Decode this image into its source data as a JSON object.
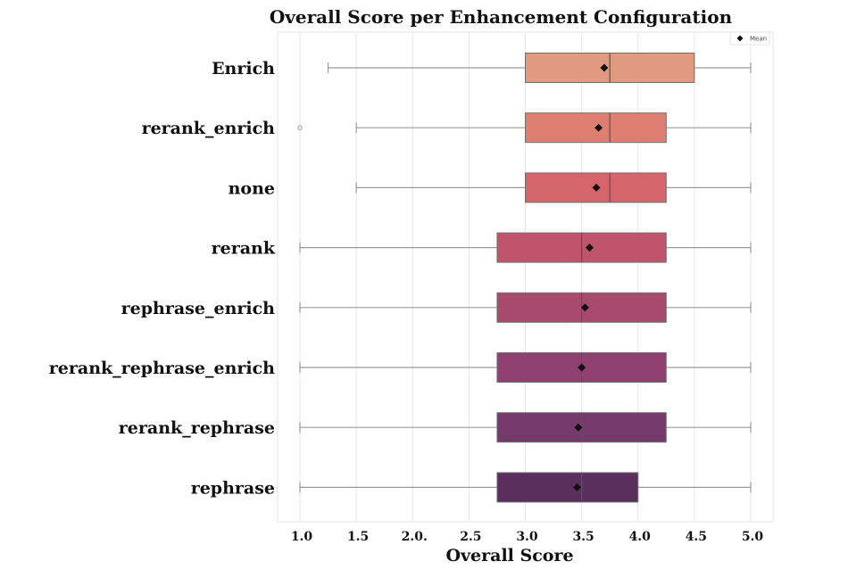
{
  "chart_data": {
    "type": "boxplot",
    "orientation": "horizontal",
    "title": "Overall Score per Enhancement Configuration",
    "xlabel": "Overall Score",
    "ylabel": "",
    "xlim": [
      0.9,
      5.1
    ],
    "xticks": [
      1.0,
      1.5,
      2.0,
      2.5,
      3.0,
      3.5,
      4.0,
      4.5,
      5.0
    ],
    "xtick_labels": [
      "1.0",
      "1.5",
      "2.0.",
      "2.5",
      "3.0",
      "3.5",
      "4.0",
      "4.5",
      "5.0"
    ],
    "grid": "vertical",
    "legend": {
      "placement": "top-right",
      "entries": [
        {
          "label": "Mean",
          "marker": "diamond"
        }
      ]
    },
    "categories": [
      "Enrich",
      "rerank_enrich",
      "none",
      "rerank",
      "rephrase_enrich",
      "rerank_rephrase_enrich",
      "rerank_rephrase",
      "rephrase"
    ],
    "colors": [
      "#e09a80",
      "#de7f72",
      "#d5646b",
      "#c1546d",
      "#a84a6d",
      "#8f4070",
      "#763a6a",
      "#5a2f5e"
    ],
    "boxes": [
      {
        "name": "Enrich",
        "whisker_low": 1.25,
        "q1": 3.0,
        "median": 3.75,
        "q3": 4.5,
        "whisker_high": 5.0,
        "mean": 3.7,
        "outliers": []
      },
      {
        "name": "rerank_enrich",
        "whisker_low": 1.5,
        "q1": 3.0,
        "median": 3.75,
        "q3": 4.25,
        "whisker_high": 5.0,
        "mean": 3.65,
        "outliers": [
          1.0
        ]
      },
      {
        "name": "none",
        "whisker_low": 1.5,
        "q1": 3.0,
        "median": 3.75,
        "q3": 4.25,
        "whisker_high": 5.0,
        "mean": 3.63,
        "outliers": []
      },
      {
        "name": "rerank",
        "whisker_low": 1.0,
        "q1": 2.75,
        "median": 3.5,
        "q3": 4.25,
        "whisker_high": 5.0,
        "mean": 3.57,
        "outliers": []
      },
      {
        "name": "rephrase_enrich",
        "whisker_low": 1.0,
        "q1": 2.75,
        "median": 3.5,
        "q3": 4.25,
        "whisker_high": 5.0,
        "mean": 3.53,
        "outliers": []
      },
      {
        "name": "rerank_rephrase_enrich",
        "whisker_low": 1.0,
        "q1": 2.75,
        "median": 3.5,
        "q3": 4.25,
        "whisker_high": 5.0,
        "mean": 3.5,
        "outliers": []
      },
      {
        "name": "rerank_rephrase",
        "whisker_low": 1.0,
        "q1": 2.75,
        "median": 3.5,
        "q3": 4.25,
        "whisker_high": 5.0,
        "mean": 3.47,
        "outliers": []
      },
      {
        "name": "rephrase",
        "whisker_low": 1.0,
        "q1": 2.75,
        "median": 3.5,
        "q3": 4.0,
        "whisker_high": 5.0,
        "mean": 3.46,
        "outliers": []
      }
    ]
  }
}
